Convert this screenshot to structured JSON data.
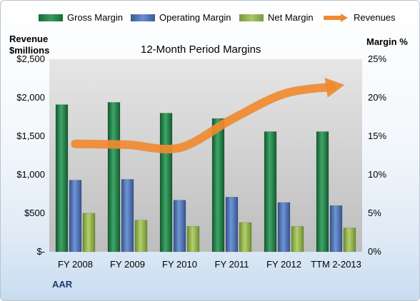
{
  "chart_data": {
    "type": "bar",
    "title": "12-Month Period Margins",
    "categories": [
      "FY 2008",
      "FY 2009",
      "FY 2010",
      "FY 2011",
      "FY 2012",
      "TTM 2-2013"
    ],
    "series": [
      {
        "name": "Gross Margin",
        "axis": "right",
        "color": "#1f7a45",
        "values": [
          19.1,
          19.4,
          18.0,
          17.3,
          15.6,
          15.6
        ]
      },
      {
        "name": "Operating Margin",
        "axis": "right",
        "color": "#4a6fb0",
        "values": [
          9.3,
          9.4,
          6.7,
          7.1,
          6.4,
          6.0
        ]
      },
      {
        "name": "Net Margin",
        "axis": "right",
        "color": "#8db04a",
        "values": [
          5.0,
          4.1,
          3.3,
          3.8,
          3.3,
          3.1
        ]
      },
      {
        "name": "Revenues",
        "type": "line",
        "axis": "left",
        "color": "#f08a30",
        "values": [
          1400,
          1390,
          1350,
          1720,
          2050,
          2150
        ]
      }
    ],
    "y_left": {
      "label": "Revenue\n$millions",
      "ylim": [
        0,
        2500
      ],
      "ticks": [
        0,
        500,
        1000,
        1500,
        2000,
        2500
      ],
      "tick_labels": [
        "$-",
        "$500",
        "$1,000",
        "$1,500",
        "$2,000",
        "$2,500"
      ]
    },
    "y_right": {
      "label": "Margin %",
      "ylim": [
        0,
        25
      ],
      "ticks": [
        0,
        5,
        10,
        15,
        20,
        25
      ],
      "tick_labels": [
        "0%",
        "5%",
        "10%",
        "15%",
        "20%",
        "25%"
      ]
    },
    "grid": false,
    "legend_position": "top",
    "footer": "AAR"
  }
}
